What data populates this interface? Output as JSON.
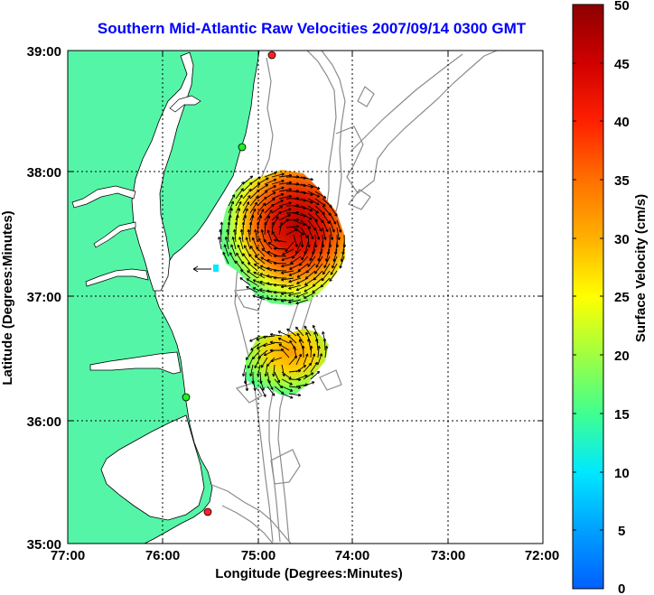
{
  "title": "Southern Mid-Atlantic Raw Velocities 2007/09/14 0300 GMT",
  "x_axis": {
    "label": "Longitude (Degrees:Minutes)",
    "ticks": [
      "77:00",
      "76:00",
      "75:00",
      "74:00",
      "73:00",
      "72:00"
    ]
  },
  "y_axis": {
    "label": "Latitude (Degrees:Minutes)",
    "ticks": [
      "39:00",
      "38:00",
      "37:00",
      "36:00",
      "35:00"
    ]
  },
  "colorbar": {
    "label": "Surface Velocity (cm/s)",
    "ticks": [
      "50",
      "45",
      "40",
      "35",
      "30",
      "25",
      "20",
      "15",
      "10",
      "5",
      "0"
    ],
    "min": 0,
    "max": 50,
    "colormap": [
      "#0060ff",
      "#00c8ff",
      "#00ffd8",
      "#40ff90",
      "#a0ff40",
      "#ffff00",
      "#ffb000",
      "#ff5000",
      "#e00000",
      "#900000"
    ]
  },
  "colors": {
    "land": "#55f5a8",
    "coastline": "#000000",
    "bathymetry": "#8c8c8c",
    "title": "#0000ff",
    "station_green": "#22ee22",
    "station_red": "#ff2222"
  },
  "map_extent": {
    "lon_west": -77.0,
    "lon_east": -72.0,
    "lat_south": 35.0,
    "lat_north": 39.0
  },
  "stations": [
    {
      "color": "red",
      "lon": -74.85,
      "lat": 39.0
    },
    {
      "color": "green",
      "lon": -75.17,
      "lat": 38.22
    },
    {
      "color": "green",
      "lon": -75.75,
      "lat": 36.18
    },
    {
      "color": "red",
      "lon": -75.52,
      "lat": 35.25
    }
  ],
  "velocity_regions": [
    {
      "name": "northern",
      "lon_range": [
        -75.35,
        -73.97
      ],
      "lat_range": [
        36.85,
        37.98
      ],
      "speed_range_cms": [
        15,
        50
      ]
    },
    {
      "name": "southern",
      "lon_range": [
        -75.05,
        -74.31
      ],
      "lat_range": [
        36.12,
        36.68
      ],
      "speed_range_cms": [
        15,
        38
      ]
    }
  ]
}
